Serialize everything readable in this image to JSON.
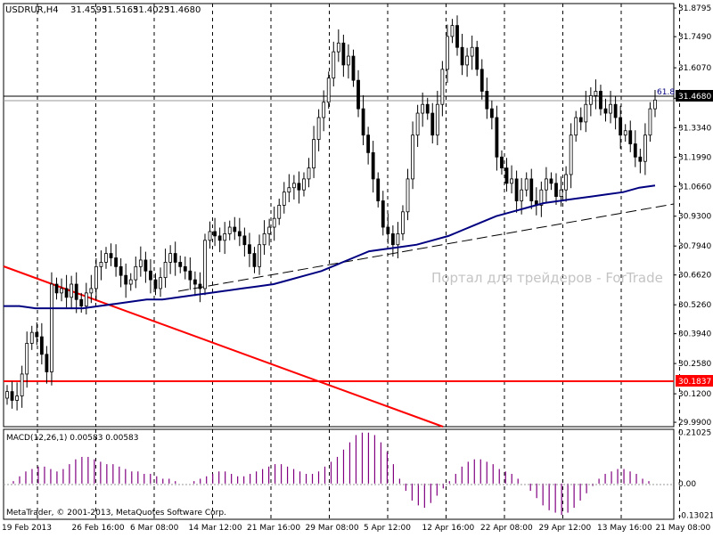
{
  "header": {
    "symbol": "USDRUR,H4",
    "open": "31.4595",
    "high": "31.5165",
    "low": "31.4025",
    "close": "31.4680"
  },
  "watermark": "Портал для трейдеров - ForTrade",
  "copyright": "MetaTrader, © 2001-2013, MetaQuotes Software Corp.",
  "colors": {
    "background": "#ffffff",
    "candles": "#000000",
    "moving_average": "#000080",
    "trendline": "#ff0000",
    "macd_histogram": "#800080",
    "grid": "#000000"
  },
  "chart_data": [
    {
      "type": "candlestick",
      "symbol": "USDRUR",
      "timeframe": "H4",
      "ylim": [
        29.97,
        31.9
      ],
      "y_ticks": [
        "31.8795",
        "31.7490",
        "31.6070",
        "31.4680",
        "31.3340",
        "31.1990",
        "31.0660",
        "30.9300",
        "30.7940",
        "30.6620",
        "30.5260",
        "30.3940",
        "30.2580",
        "30.1200",
        "29.9900"
      ],
      "x_ticks": [
        "19 Feb 2013",
        "26 Feb 16:00",
        "6 Mar 08:00",
        "14 Mar 12:00",
        "21 Mar 16:00",
        "29 Mar 08:00",
        "5 Apr 12:00",
        "12 Apr 16:00",
        "22 Apr 08:00",
        "29 Apr 12:00",
        "13 May 16:00",
        "21 May 08:00"
      ],
      "price_labels": [
        "31.4680",
        "30.1837"
      ],
      "fib_label": "61.8",
      "horizontal_lines": [
        31.468,
        30.1837
      ],
      "close_series": [
        30.13,
        30.09,
        30.11,
        30.21,
        30.35,
        30.4,
        30.38,
        30.3,
        30.22,
        30.62,
        30.58,
        30.6,
        30.56,
        30.62,
        30.55,
        30.52,
        30.58,
        30.6,
        30.7,
        30.72,
        30.76,
        30.74,
        30.7,
        30.66,
        30.62,
        30.64,
        30.7,
        30.73,
        30.68,
        30.64,
        30.6,
        30.65,
        30.72,
        30.76,
        30.72,
        30.7,
        30.68,
        30.64,
        30.62,
        30.6,
        30.82,
        30.86,
        30.84,
        30.82,
        30.85,
        30.88,
        30.86,
        30.84,
        30.8,
        30.76,
        30.7,
        30.8,
        30.85,
        30.88,
        30.92,
        30.98,
        31.04,
        31.06,
        31.08,
        31.05,
        31.1,
        31.15,
        31.28,
        31.38,
        31.45,
        31.56,
        31.68,
        31.72,
        31.62,
        31.66,
        31.55,
        31.42,
        31.3,
        31.22,
        31.1,
        31.0,
        30.88,
        30.85,
        30.8,
        30.85,
        30.95,
        31.1,
        31.3,
        31.4,
        31.44,
        31.4,
        31.3,
        31.44,
        31.6,
        31.75,
        31.8,
        31.7,
        31.62,
        31.66,
        31.7,
        31.6,
        31.5,
        31.42,
        31.38,
        31.2,
        31.15,
        31.08,
        31.1,
        31.0,
        31.05,
        31.1,
        31.0,
        30.98,
        31.05,
        31.1,
        31.08,
        31.02,
        31.05,
        31.12,
        31.3,
        31.38,
        31.36,
        31.44,
        31.48,
        31.5,
        31.42,
        31.4,
        31.44,
        31.38,
        31.3,
        31.32,
        31.26,
        31.2,
        31.18,
        31.3,
        31.42,
        31.46
      ],
      "moving_average": [
        30.52,
        30.52,
        30.51,
        30.51,
        30.51,
        30.51,
        30.52,
        30.53,
        30.54,
        30.55,
        30.55,
        30.56,
        30.57,
        30.58,
        30.59,
        30.6,
        30.61,
        30.62,
        30.64,
        30.66,
        30.68,
        30.71,
        30.74,
        30.77,
        30.78,
        30.79,
        30.8,
        30.82,
        30.84,
        30.87,
        30.9,
        30.93,
        30.95,
        30.97,
        30.99,
        31.0,
        31.01,
        31.02,
        31.03,
        31.04,
        31.06,
        31.07
      ],
      "trendlines": [
        {
          "style": "solid",
          "color": "red",
          "from": "19 Feb 2013",
          "to": "22 Apr 08:00"
        },
        {
          "style": "dashed",
          "color": "black",
          "from": "14 Mar 12:00",
          "to": "21 May 08:00"
        }
      ]
    },
    {
      "type": "histogram",
      "title": "MACD(12,26,1) 0.00583 0.00583",
      "ylim": [
        -0.14,
        0.22
      ],
      "y_ticks": [
        "0.21025",
        "0.00",
        "-0.13021"
      ],
      "values": [
        0.0,
        0.01,
        0.03,
        0.05,
        0.06,
        0.07,
        0.07,
        0.06,
        0.05,
        0.06,
        0.08,
        0.1,
        0.11,
        0.11,
        0.1,
        0.09,
        0.08,
        0.08,
        0.07,
        0.06,
        0.05,
        0.05,
        0.04,
        0.04,
        0.03,
        0.02,
        0.02,
        0.01,
        0.0,
        0.0,
        0.01,
        0.02,
        0.03,
        0.04,
        0.05,
        0.05,
        0.04,
        0.03,
        0.03,
        0.04,
        0.05,
        0.06,
        0.07,
        0.08,
        0.08,
        0.07,
        0.06,
        0.05,
        0.04,
        0.04,
        0.05,
        0.07,
        0.09,
        0.11,
        0.14,
        0.17,
        0.2,
        0.21,
        0.21,
        0.2,
        0.17,
        0.13,
        0.08,
        0.02,
        -0.03,
        -0.07,
        -0.09,
        -0.1,
        -0.08,
        -0.05,
        -0.02,
        0.01,
        0.04,
        0.07,
        0.09,
        0.1,
        0.1,
        0.09,
        0.08,
        0.06,
        0.05,
        0.04,
        0.02,
        0.0,
        -0.03,
        -0.06,
        -0.09,
        -0.11,
        -0.12,
        -0.13,
        -0.12,
        -0.1,
        -0.07,
        -0.04,
        -0.01,
        0.02,
        0.04,
        0.05,
        0.06,
        0.06,
        0.05,
        0.04,
        0.02,
        0.01,
        0.0
      ]
    }
  ]
}
